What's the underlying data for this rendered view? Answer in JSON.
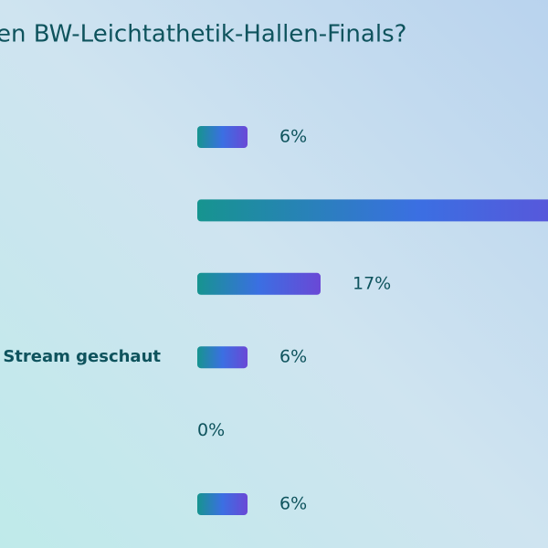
{
  "chart_data": {
    "type": "bar",
    "orientation": "horizontal",
    "title": "en BW-Leichtathetik-Hallen-Finals?",
    "categories": [
      null,
      null,
      null,
      "Stream geschaut",
      null,
      null
    ],
    "values": [
      6,
      65,
      17,
      6,
      0,
      6
    ],
    "value_labels": [
      "6%",
      null,
      "17%",
      "6%",
      "0%",
      "6%"
    ],
    "colors": [
      "#16948f",
      "#3b6fe2",
      "#6a48d6"
    ]
  }
}
